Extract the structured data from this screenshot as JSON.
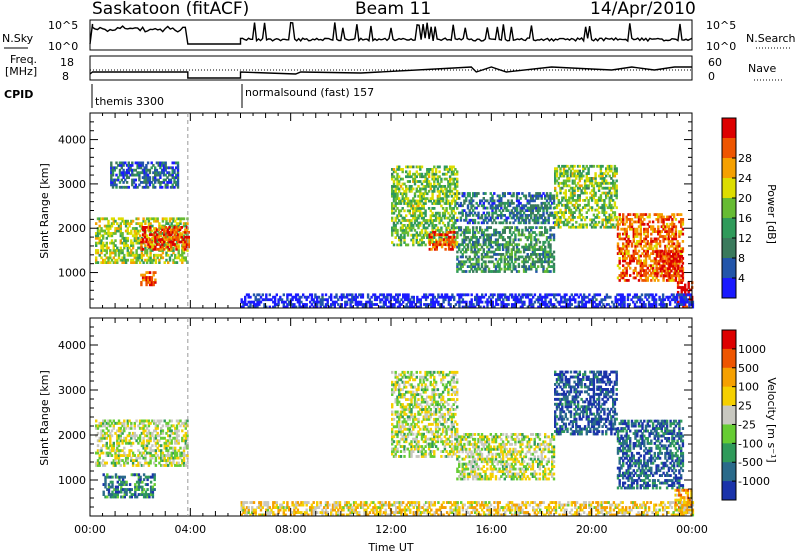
{
  "header": {
    "station": "Saskatoon (fitACF)",
    "beam": "Beam 11",
    "date": "14/Apr/2010"
  },
  "strip": {
    "nsky_label": "N.Sky",
    "nsky_ticks": [
      "10^5",
      "10^0"
    ],
    "nsearch_ticks": [
      "10^5",
      "10^0"
    ],
    "nsearch_label": "N.Search",
    "freq_label": "Freq.",
    "freq_unit": "[MHz]",
    "freq_ticks": [
      "18",
      "8"
    ],
    "nave_ticks": [
      "60",
      "0"
    ],
    "nave_label": "Nave",
    "cpid_label": "CPID",
    "cpid_segments": [
      {
        "name": "themis 3300",
        "start_h": 0,
        "end_h": 3.9
      },
      {
        "name": "normalsound (fast) 157",
        "start_h": 6.0,
        "end_h": 24
      }
    ]
  },
  "chart_data": [
    {
      "type": "heatmap",
      "panel": "power",
      "ylabel": "Slant Range [km]",
      "yticks": [
        1000,
        2000,
        3000,
        4000
      ],
      "ylim": [
        200,
        4600
      ],
      "xlim": [
        0,
        24
      ],
      "colorbar_label": "Power [dB]",
      "colorbar_ticks": [
        "4",
        "8",
        "12",
        "16",
        "20",
        "24",
        "28"
      ],
      "colors": [
        "#1a1aff",
        "#2255aa",
        "#3a7a5c",
        "#2f9a5a",
        "#66bb33",
        "#dddd00",
        "#f5a000",
        "#ee5500",
        "#dd0000"
      ],
      "echo_regions": [
        {
          "t0": 0.2,
          "t1": 3.9,
          "r0": 1200,
          "r1": 2200,
          "level": 0.55
        },
        {
          "t0": 2.0,
          "t1": 3.9,
          "r0": 1500,
          "r1": 2000,
          "level": 0.85
        },
        {
          "t0": 2.0,
          "t1": 2.6,
          "r0": 700,
          "r1": 1000,
          "level": 0.9
        },
        {
          "t0": 0.8,
          "t1": 3.5,
          "r0": 2900,
          "r1": 3500,
          "level": 0.2
        },
        {
          "t0": 12.0,
          "t1": 14.6,
          "r0": 1600,
          "r1": 3400,
          "level": 0.5
        },
        {
          "t0": 13.5,
          "t1": 14.5,
          "r0": 1500,
          "r1": 1900,
          "level": 0.85
        },
        {
          "t0": 14.6,
          "t1": 18.5,
          "r0": 1000,
          "r1": 2000,
          "level": 0.35
        },
        {
          "t0": 14.6,
          "t1": 18.5,
          "r0": 2100,
          "r1": 2800,
          "level": 0.25
        },
        {
          "t0": 18.5,
          "t1": 21.0,
          "r0": 2000,
          "r1": 3400,
          "level": 0.5
        },
        {
          "t0": 21.0,
          "t1": 23.6,
          "r0": 800,
          "r1": 2300,
          "level": 0.8
        },
        {
          "t0": 22.5,
          "t1": 23.6,
          "r0": 900,
          "r1": 1500,
          "level": 0.95
        },
        {
          "t0": 23.4,
          "t1": 24.0,
          "r0": 200,
          "r1": 800,
          "level": 0.95
        },
        {
          "t0": 6.0,
          "t1": 24.0,
          "r0": 200,
          "r1": 500,
          "level": 0.05
        }
      ]
    },
    {
      "type": "heatmap",
      "panel": "velocity",
      "ylabel": "Slant Range [km]",
      "yticks": [
        1000,
        2000,
        3000,
        4000
      ],
      "ylim": [
        200,
        4600
      ],
      "xlim": [
        0,
        24
      ],
      "xticks": [
        "00:00",
        "04:00",
        "08:00",
        "12:00",
        "16:00",
        "20:00",
        "00:00"
      ],
      "xlabel": "Time UT",
      "colorbar_label": "Velocity [m s⁻¹]",
      "colorbar_ticks": [
        "1000",
        "500",
        "100",
        "25",
        "-25",
        "-100",
        "-500",
        "-1000"
      ],
      "colors": [
        "#1a33aa",
        "#2a6a8a",
        "#2f9a5a",
        "#66cc33",
        "#c8c8c0",
        "#f5d000",
        "#f5a000",
        "#ee5500",
        "#dd0000"
      ],
      "echo_regions": [
        {
          "t0": 0.2,
          "t1": 3.9,
          "r0": 1300,
          "r1": 2300,
          "level": 0.48
        },
        {
          "t0": 0.5,
          "t1": 2.6,
          "r0": 600,
          "r1": 1100,
          "level": 0.2
        },
        {
          "t0": 12.0,
          "t1": 14.6,
          "r0": 1500,
          "r1": 3400,
          "level": 0.48
        },
        {
          "t0": 14.6,
          "t1": 18.5,
          "r0": 1000,
          "r1": 2000,
          "level": 0.48
        },
        {
          "t0": 18.5,
          "t1": 21.0,
          "r0": 2000,
          "r1": 3400,
          "level": 0.1
        },
        {
          "t0": 21.0,
          "t1": 23.6,
          "r0": 800,
          "r1": 2300,
          "level": 0.15
        },
        {
          "t0": 23.3,
          "t1": 24.0,
          "r0": 200,
          "r1": 800,
          "level": 0.7
        },
        {
          "t0": 6.0,
          "t1": 24.0,
          "r0": 200,
          "r1": 500,
          "level": 0.6
        }
      ]
    }
  ]
}
